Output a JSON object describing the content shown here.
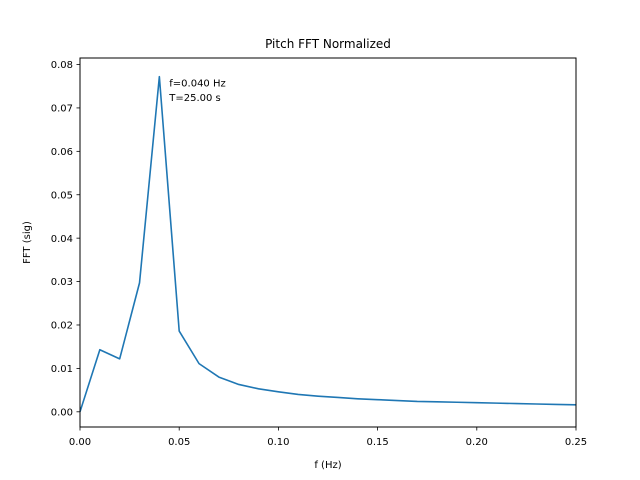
{
  "chart_data": {
    "type": "line",
    "title": "Pitch FFT Normalized",
    "xlabel": "f (Hz)",
    "ylabel": "FFT (sig)",
    "xlim": [
      0.0,
      0.25
    ],
    "ylim": [
      -0.0035,
      0.0815
    ],
    "grid": false,
    "legend": "none",
    "xticks": [
      0.0,
      0.05,
      0.1,
      0.15,
      0.2,
      0.25
    ],
    "xtick_labels": [
      "0.00",
      "0.05",
      "0.10",
      "0.15",
      "0.20",
      "0.25"
    ],
    "yticks": [
      0.0,
      0.01,
      0.02,
      0.03,
      0.04,
      0.05,
      0.06,
      0.07,
      0.08
    ],
    "ytick_labels": [
      "0.00",
      "0.01",
      "0.02",
      "0.03",
      "0.04",
      "0.05",
      "0.06",
      "0.07",
      "0.08"
    ],
    "series": [
      {
        "color": "#1f77b4",
        "x": [
          0.0,
          0.01,
          0.02,
          0.03,
          0.04,
          0.05,
          0.06,
          0.07,
          0.08,
          0.09,
          0.1,
          0.11,
          0.12,
          0.13,
          0.14,
          0.15,
          0.16,
          0.17,
          0.18,
          0.19,
          0.2,
          0.21,
          0.22,
          0.23,
          0.24,
          0.25
        ],
        "y": [
          0.0,
          0.0143,
          0.0122,
          0.0297,
          0.0772,
          0.0186,
          0.0111,
          0.008,
          0.0063,
          0.0053,
          0.0046,
          0.004,
          0.0036,
          0.0033,
          0.003,
          0.0028,
          0.0026,
          0.0024,
          0.0023,
          0.0022,
          0.0021,
          0.002,
          0.0019,
          0.0018,
          0.0017,
          0.0016
        ]
      }
    ],
    "annotations": [
      {
        "text": "f=0.040 Hz",
        "x": 0.045,
        "y": 0.0749
      },
      {
        "text": "T=25.00 s",
        "x": 0.045,
        "y": 0.0716
      }
    ]
  }
}
